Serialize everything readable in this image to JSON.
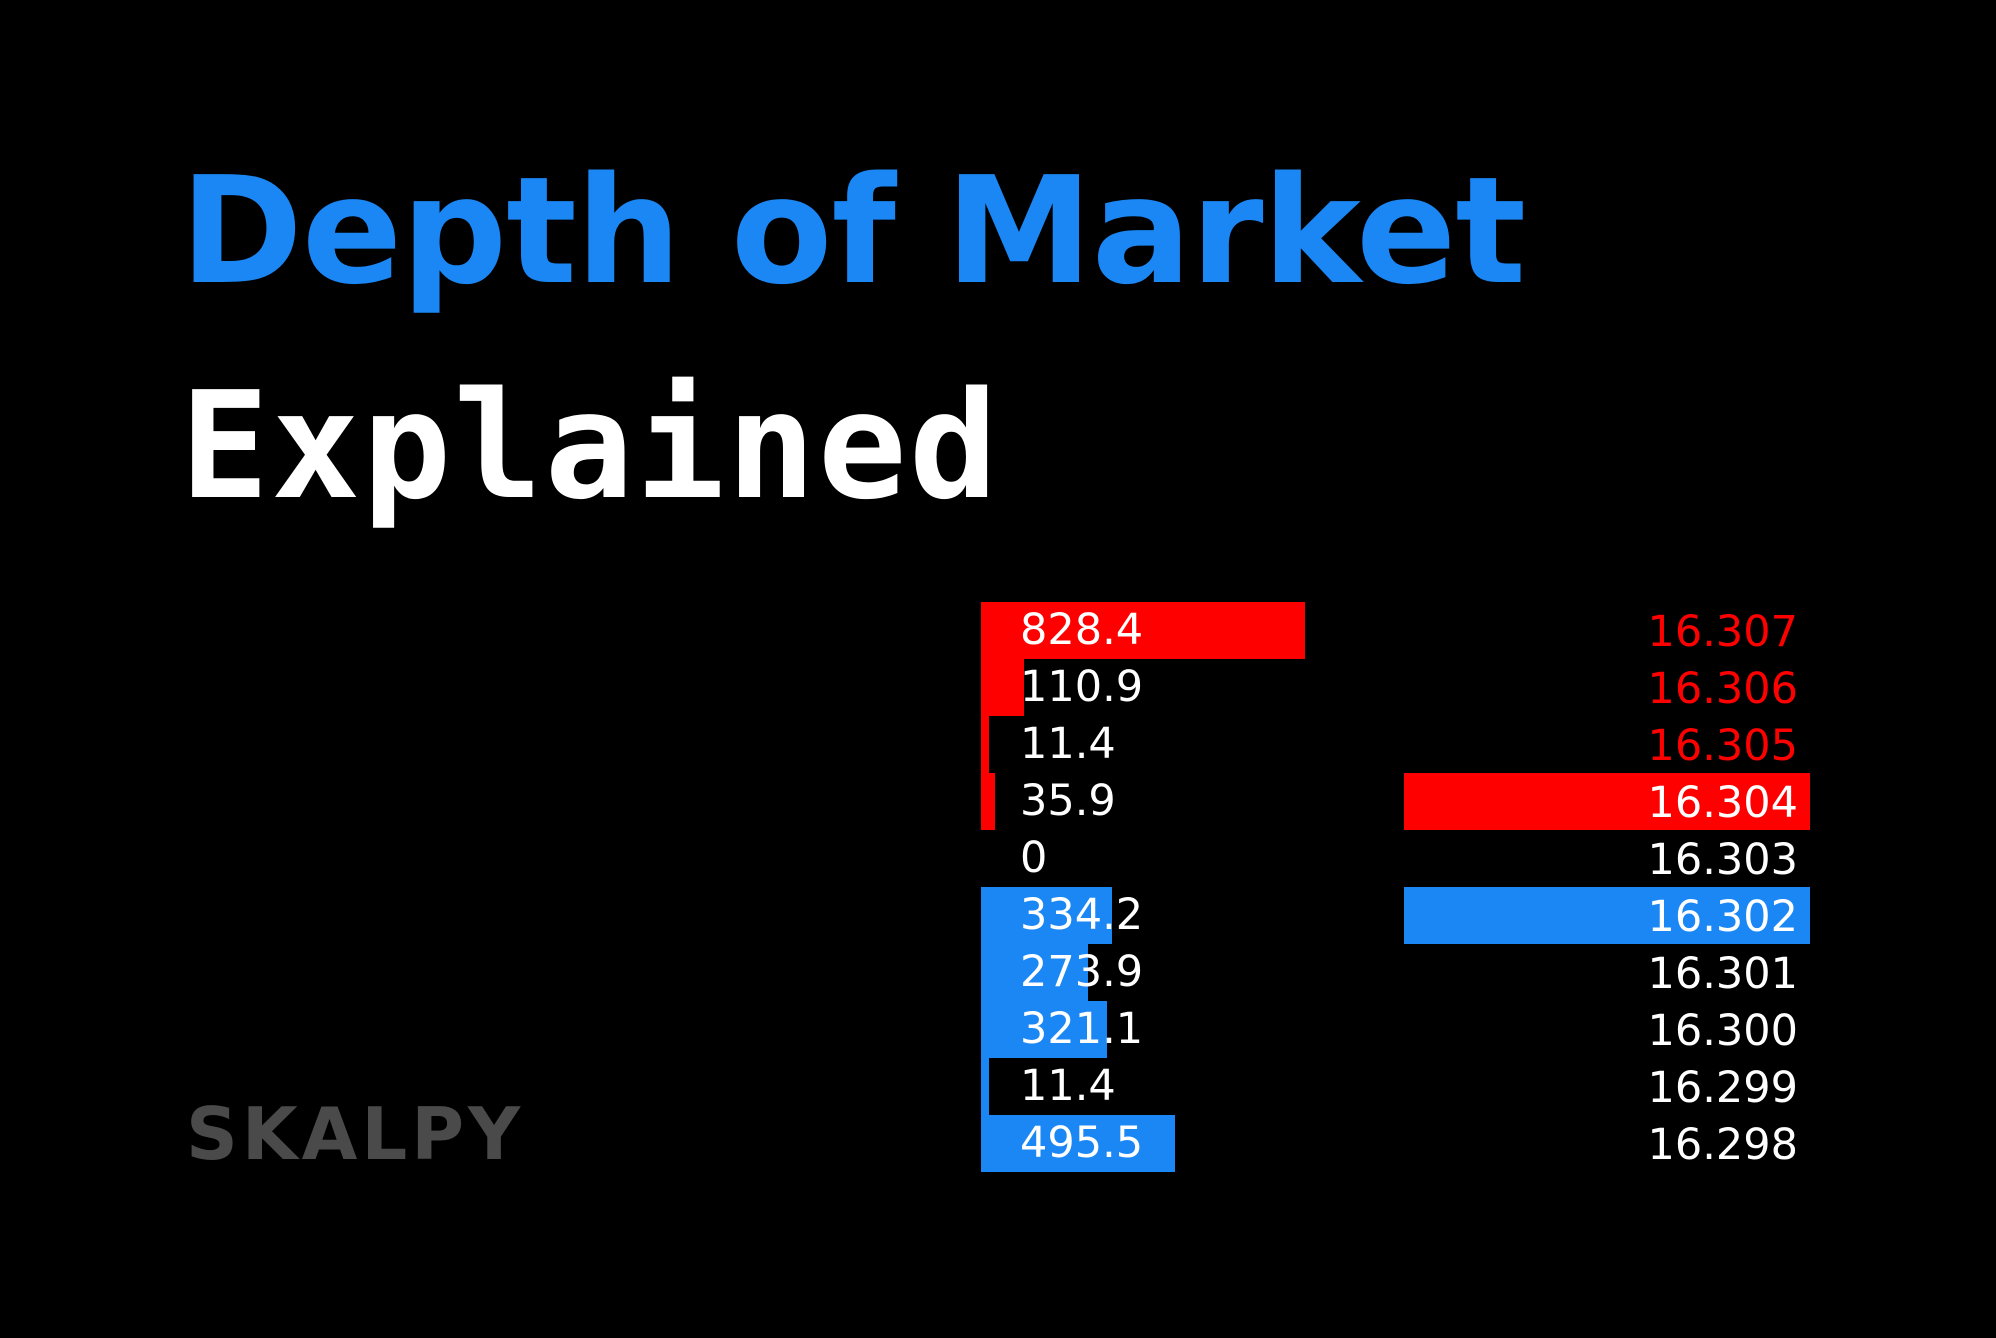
{
  "header": {
    "title": "Depth of Market",
    "subtitle": "Explained"
  },
  "brand": {
    "name": "SKALPY"
  },
  "colors": {
    "title": "#1a87f5",
    "ask": "#ff0000",
    "bid": "#1a87f5",
    "neutral_text": "#ffffff",
    "brand": "#4a4a4a",
    "background": "#000000"
  },
  "order_book": {
    "rows": [
      {
        "volume": "828.4",
        "price": "16.307",
        "side": "ask",
        "volume_fraction": 1.0,
        "highlight": ""
      },
      {
        "volume": "110.9",
        "price": "16.306",
        "side": "ask",
        "volume_fraction": 0.134,
        "highlight": ""
      },
      {
        "volume": "11.4",
        "price": "16.305",
        "side": "ask",
        "volume_fraction": 0.014,
        "highlight": ""
      },
      {
        "volume": "35.9",
        "price": "16.304",
        "side": "ask",
        "volume_fraction": 0.043,
        "highlight": "ask"
      },
      {
        "volume": "0",
        "price": "16.303",
        "side": "none",
        "volume_fraction": 0,
        "highlight": ""
      },
      {
        "volume": "334.2",
        "price": "16.302",
        "side": "bid",
        "volume_fraction": 0.403,
        "highlight": "bid"
      },
      {
        "volume": "273.9",
        "price": "16.301",
        "side": "bid",
        "volume_fraction": 0.331,
        "highlight": ""
      },
      {
        "volume": "321.1",
        "price": "16.300",
        "side": "bid",
        "volume_fraction": 0.388,
        "highlight": ""
      },
      {
        "volume": "11.4",
        "price": "16.299",
        "side": "bid",
        "volume_fraction": 0.014,
        "highlight": ""
      },
      {
        "volume": "495.5",
        "price": "16.298",
        "side": "bid",
        "volume_fraction": 0.598,
        "highlight": ""
      }
    ]
  }
}
